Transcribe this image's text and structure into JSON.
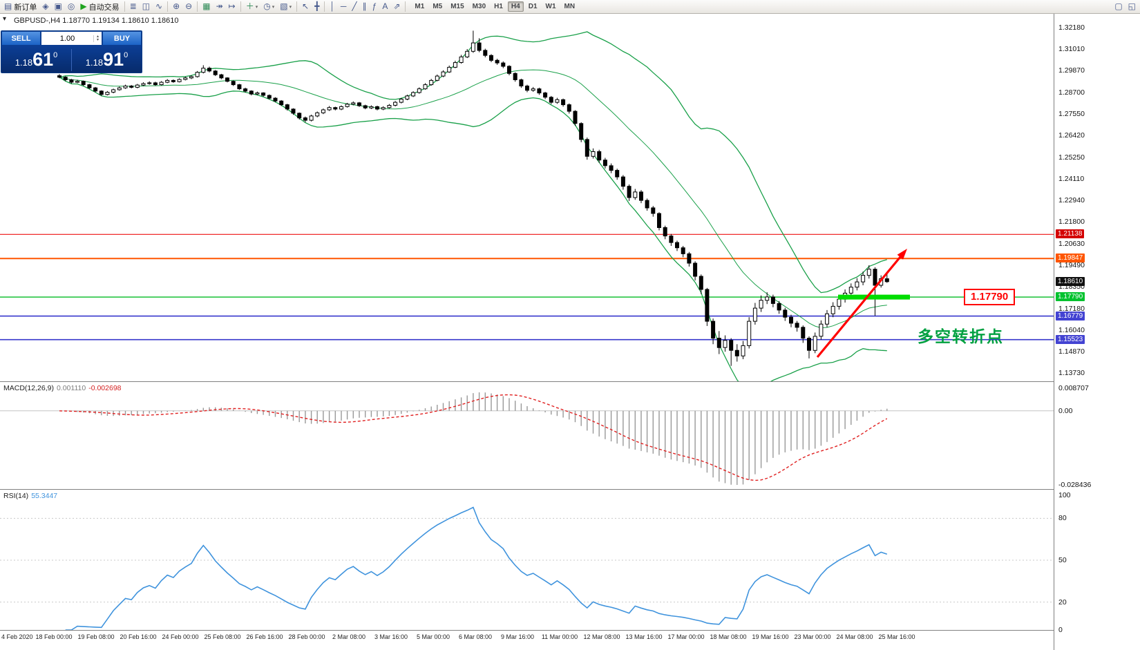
{
  "icons": {
    "dropdown": "▾",
    "spin_up": "▴",
    "spin_down": "▾",
    "panel_toggle": "▾"
  },
  "toolbar": {
    "items": [
      {
        "type": "button",
        "name": "new-order",
        "glyph": "▤",
        "label": "新订单"
      },
      {
        "type": "icon",
        "name": "market-watch",
        "glyph": "◈"
      },
      {
        "type": "icon",
        "name": "data-window",
        "glyph": "▣"
      },
      {
        "type": "icon",
        "name": "navigator",
        "glyph": "◎"
      },
      {
        "type": "button",
        "name": "autotrading",
        "glyph": "▶",
        "label": "自动交易",
        "glyph_color": "#1fa41f"
      },
      {
        "type": "sep"
      },
      {
        "type": "icon",
        "name": "bar-chart",
        "glyph": "≣"
      },
      {
        "type": "icon",
        "name": "candlestick-chart",
        "glyph": "◫"
      },
      {
        "type": "icon",
        "name": "line-chart",
        "glyph": "∿"
      },
      {
        "type": "sep"
      },
      {
        "type": "icon",
        "name": "zoom-in",
        "glyph": "⊕"
      },
      {
        "type": "icon",
        "name": "zoom-out",
        "glyph": "⊖"
      },
      {
        "type": "sep"
      },
      {
        "type": "icon",
        "name": "grid",
        "glyph": "▦",
        "glyph_color": "#2e8b57"
      },
      {
        "type": "icon",
        "name": "auto-scroll",
        "glyph": "↠"
      },
      {
        "type": "icon",
        "name": "chart-shift",
        "glyph": "↦"
      },
      {
        "type": "sep"
      },
      {
        "type": "icon",
        "name": "indicators",
        "glyph": "＋",
        "dropdown": true,
        "glyph_color": "#2e8b57"
      },
      {
        "type": "icon",
        "name": "periods",
        "glyph": "◷",
        "dropdown": true
      },
      {
        "type": "icon",
        "name": "templates",
        "glyph": "▧",
        "dropdown": true
      },
      {
        "type": "sep"
      },
      {
        "type": "icon",
        "name": "cursor",
        "glyph": "↖"
      },
      {
        "type": "icon",
        "name": "crosshair",
        "glyph": "╋"
      },
      {
        "type": "sep"
      },
      {
        "type": "icon",
        "name": "vertical-line",
        "glyph": "│"
      },
      {
        "type": "icon",
        "name": "horizontal-line",
        "glyph": "─"
      },
      {
        "type": "icon",
        "name": "trendline",
        "glyph": "╱"
      },
      {
        "type": "icon",
        "name": "channel",
        "glyph": "∥"
      },
      {
        "type": "icon",
        "name": "fibonacci",
        "glyph": "ƒ"
      },
      {
        "type": "icon",
        "name": "text",
        "glyph": "A"
      },
      {
        "type": "icon",
        "name": "arrows",
        "glyph": "⇗"
      },
      {
        "type": "sep"
      }
    ],
    "timeframes": [
      "M1",
      "M5",
      "M15",
      "M30",
      "H1",
      "H4",
      "D1",
      "W1",
      "MN"
    ],
    "active_timeframe": "H4",
    "right_items": [
      {
        "name": "new-chart-window",
        "glyph": "▢"
      },
      {
        "name": "window-arrange",
        "glyph": "◱"
      }
    ]
  },
  "chart": {
    "header": "GBPUSD-,H4 1.18770 1.19134 1.18610 1.18610",
    "trade_panel": {
      "sell_label": "SELL",
      "buy_label": "BUY",
      "volume": "1.00",
      "sell_price": {
        "prefix": "1.18",
        "big": "61",
        "sup": "0"
      },
      "buy_price": {
        "prefix": "1.18",
        "big": "91",
        "sup": "0"
      }
    },
    "price_axis": {
      "labels": [
        "1.32180",
        "1.31010",
        "1.29870",
        "1.28700",
        "1.27550",
        "1.26420",
        "1.25250",
        "1.24110",
        "1.22940",
        "1.21800",
        "1.20630",
        "1.19490",
        "1.18350",
        "1.17180",
        "1.16040",
        "1.14870",
        "1.13730"
      ],
      "markers": [
        {
          "value": "1.21138",
          "color": "#d40000"
        },
        {
          "value": "1.19847",
          "color": "#ff5500"
        },
        {
          "value": "1.18610",
          "color": "#101010"
        },
        {
          "value": "1.17790",
          "color": "#00c22e"
        },
        {
          "value": "1.16779",
          "color": "#4343d2"
        },
        {
          "value": "1.15523",
          "color": "#4343d2"
        }
      ]
    },
    "hlines": [
      {
        "price": 1.21138,
        "color": "#ee1111",
        "width": 1.2
      },
      {
        "price": 1.19847,
        "color": "#ff5500",
        "width": 2
      },
      {
        "price": 1.1779,
        "color": "#00bb22",
        "width": 1.4
      },
      {
        "price": 1.16779,
        "color": "#3535cc",
        "width": 1.6
      },
      {
        "price": 1.15523,
        "color": "#3535cc",
        "width": 1.6
      }
    ],
    "annotations": {
      "price_label": "1.17790",
      "note": "多空转折点",
      "highlight_price": 1.1779,
      "highlight_color": "#00dd00",
      "arrow_color": "#ff0000"
    }
  },
  "chart_data": {
    "type": "candlestick",
    "symbol": "GBPUSD",
    "timeframe": "H4",
    "ohlc_display": {
      "open": "1.18770",
      "high": "1.19134",
      "low": "1.18610",
      "close": "1.18610"
    },
    "y_range": {
      "max": 1.329,
      "min": 1.133
    },
    "bull_color": "#ffffff",
    "bear_color": "#000000",
    "bollinger": {
      "period": 20,
      "deviation": 2,
      "color": "#19a049"
    },
    "candles": [
      [
        1.296,
        1.2968,
        1.2946,
        1.2952
      ],
      [
        1.2952,
        1.2957,
        1.293,
        1.2938
      ],
      [
        1.2938,
        1.2943,
        1.2918,
        1.2925
      ],
      [
        1.2925,
        1.2938,
        1.292,
        1.293
      ],
      [
        1.293,
        1.2934,
        1.2905,
        1.2912
      ],
      [
        1.2912,
        1.2916,
        1.2889,
        1.2895
      ],
      [
        1.2895,
        1.29,
        1.2871,
        1.2878
      ],
      [
        1.2878,
        1.2882,
        1.2852,
        1.286
      ],
      [
        1.286,
        1.2878,
        1.2855,
        1.2872
      ],
      [
        1.2872,
        1.2891,
        1.2866,
        1.2885
      ],
      [
        1.2885,
        1.2902,
        1.288,
        1.2895
      ],
      [
        1.2895,
        1.2912,
        1.289,
        1.2905
      ],
      [
        1.2905,
        1.291,
        1.2892,
        1.2898
      ],
      [
        1.2898,
        1.2916,
        1.2893,
        1.291
      ],
      [
        1.291,
        1.2925,
        1.2905,
        1.2918
      ],
      [
        1.2918,
        1.293,
        1.2912,
        1.2922
      ],
      [
        1.2922,
        1.2928,
        1.2906,
        1.2912
      ],
      [
        1.2912,
        1.2931,
        1.2908,
        1.2925
      ],
      [
        1.2925,
        1.2942,
        1.292,
        1.2935
      ],
      [
        1.2935,
        1.294,
        1.2922,
        1.2928
      ],
      [
        1.2928,
        1.2946,
        1.2924,
        1.294
      ],
      [
        1.294,
        1.2955,
        1.2935,
        1.2948
      ],
      [
        1.2948,
        1.2962,
        1.2942,
        1.2955
      ],
      [
        1.2955,
        1.2985,
        1.295,
        1.2978
      ],
      [
        1.2978,
        1.3016,
        1.2972,
        1.3
      ],
      [
        1.3,
        1.3008,
        1.2978,
        1.2985
      ],
      [
        1.2985,
        1.299,
        1.2958,
        1.2965
      ],
      [
        1.2965,
        1.297,
        1.2941,
        1.2948
      ],
      [
        1.2948,
        1.2952,
        1.2924,
        1.293
      ],
      [
        1.293,
        1.2935,
        1.2905,
        1.2912
      ],
      [
        1.2912,
        1.2916,
        1.2884,
        1.289
      ],
      [
        1.289,
        1.2896,
        1.287,
        1.2878
      ],
      [
        1.2878,
        1.2882,
        1.2855,
        1.2862
      ],
      [
        1.2862,
        1.2875,
        1.2856,
        1.2868
      ],
      [
        1.2868,
        1.2872,
        1.2848,
        1.2855
      ],
      [
        1.2855,
        1.286,
        1.2833,
        1.284
      ],
      [
        1.284,
        1.2845,
        1.2818,
        1.2825
      ],
      [
        1.2825,
        1.283,
        1.2798,
        1.2805
      ],
      [
        1.2805,
        1.281,
        1.2774,
        1.2782
      ],
      [
        1.2782,
        1.2786,
        1.2751,
        1.276
      ],
      [
        1.276,
        1.2764,
        1.2726,
        1.2735
      ],
      [
        1.2735,
        1.2742,
        1.2712,
        1.2722
      ],
      [
        1.2722,
        1.2752,
        1.2716,
        1.2745
      ],
      [
        1.2745,
        1.2769,
        1.2738,
        1.2762
      ],
      [
        1.2762,
        1.2785,
        1.2755,
        1.2778
      ],
      [
        1.2778,
        1.2798,
        1.2772,
        1.279
      ],
      [
        1.279,
        1.2795,
        1.2775,
        1.2782
      ],
      [
        1.2782,
        1.2802,
        1.2776,
        1.2795
      ],
      [
        1.2795,
        1.2815,
        1.279,
        1.2808
      ],
      [
        1.2808,
        1.2823,
        1.2802,
        1.2815
      ],
      [
        1.2815,
        1.282,
        1.2793,
        1.28
      ],
      [
        1.28,
        1.2805,
        1.2781,
        1.2788
      ],
      [
        1.2788,
        1.2802,
        1.2782,
        1.2795
      ],
      [
        1.2795,
        1.28,
        1.2775,
        1.2782
      ],
      [
        1.2782,
        1.2797,
        1.2776,
        1.279
      ],
      [
        1.279,
        1.2809,
        1.2785,
        1.2802
      ],
      [
        1.2802,
        1.2825,
        1.2796,
        1.2818
      ],
      [
        1.2818,
        1.2842,
        1.2812,
        1.2835
      ],
      [
        1.2835,
        1.2859,
        1.2829,
        1.2852
      ],
      [
        1.2852,
        1.2877,
        1.2846,
        1.287
      ],
      [
        1.287,
        1.2898,
        1.2864,
        1.289
      ],
      [
        1.289,
        1.292,
        1.2885,
        1.2912
      ],
      [
        1.2912,
        1.2943,
        1.2907,
        1.2935
      ],
      [
        1.2935,
        1.2966,
        1.293,
        1.2958
      ],
      [
        1.2958,
        1.2989,
        1.2952,
        1.298
      ],
      [
        1.298,
        1.3014,
        1.2975,
        1.3005
      ],
      [
        1.3005,
        1.304,
        1.3,
        1.303
      ],
      [
        1.303,
        1.3071,
        1.3024,
        1.306
      ],
      [
        1.306,
        1.3102,
        1.3054,
        1.309
      ],
      [
        1.309,
        1.32,
        1.3082,
        1.3135
      ],
      [
        1.3135,
        1.316,
        1.3085,
        1.3095
      ],
      [
        1.3095,
        1.3104,
        1.3058,
        1.3068
      ],
      [
        1.3068,
        1.3075,
        1.3032,
        1.3042
      ],
      [
        1.3042,
        1.305,
        1.3018,
        1.3028
      ],
      [
        1.3028,
        1.3036,
        1.3,
        1.301
      ],
      [
        1.301,
        1.3016,
        1.2962,
        1.2972
      ],
      [
        1.2972,
        1.2978,
        1.2928,
        1.2938
      ],
      [
        1.2938,
        1.2944,
        1.2895,
        1.2905
      ],
      [
        1.2905,
        1.2912,
        1.2872,
        1.2882
      ],
      [
        1.2882,
        1.29,
        1.2874,
        1.289
      ],
      [
        1.289,
        1.2896,
        1.2858,
        1.2868
      ],
      [
        1.2868,
        1.2874,
        1.2835,
        1.2845
      ],
      [
        1.2845,
        1.2852,
        1.2808,
        1.2818
      ],
      [
        1.2818,
        1.2842,
        1.281,
        1.2832
      ],
      [
        1.2832,
        1.2838,
        1.2795,
        1.2805
      ],
      [
        1.2805,
        1.2812,
        1.2758,
        1.277
      ],
      [
        1.277,
        1.2776,
        1.2692,
        1.2705
      ],
      [
        1.2705,
        1.2712,
        1.2605,
        1.262
      ],
      [
        1.262,
        1.263,
        1.2512,
        1.253
      ],
      [
        1.253,
        1.2572,
        1.2518,
        1.2555
      ],
      [
        1.2555,
        1.2565,
        1.2495,
        1.251
      ],
      [
        1.251,
        1.2522,
        1.2465,
        1.248
      ],
      [
        1.248,
        1.2492,
        1.244,
        1.2455
      ],
      [
        1.2455,
        1.2464,
        1.2405,
        1.242
      ],
      [
        1.242,
        1.243,
        1.2352,
        1.237
      ],
      [
        1.237,
        1.238,
        1.2292,
        1.231
      ],
      [
        1.231,
        1.2356,
        1.2298,
        1.234
      ],
      [
        1.234,
        1.235,
        1.228,
        1.2295
      ],
      [
        1.2295,
        1.2305,
        1.224,
        1.2255
      ],
      [
        1.2255,
        1.2265,
        1.2208,
        1.2225
      ],
      [
        1.2225,
        1.2232,
        1.2135,
        1.215
      ],
      [
        1.215,
        1.216,
        1.2088,
        1.2105
      ],
      [
        1.2105,
        1.2116,
        1.2052,
        1.207
      ],
      [
        1.207,
        1.208,
        1.2025,
        1.2042
      ],
      [
        1.2042,
        1.2052,
        1.1992,
        1.201
      ],
      [
        1.201,
        1.202,
        1.1942,
        1.196
      ],
      [
        1.196,
        1.197,
        1.1868,
        1.189
      ],
      [
        1.189,
        1.19,
        1.1795,
        1.182
      ],
      [
        1.182,
        1.1828,
        1.1625,
        1.165
      ],
      [
        1.165,
        1.1665,
        1.1528,
        1.156
      ],
      [
        1.156,
        1.1598,
        1.1475,
        1.151
      ],
      [
        1.151,
        1.1575,
        1.1488,
        1.1548
      ],
      [
        1.1548,
        1.156,
        1.1412,
        1.1495
      ],
      [
        1.1495,
        1.1528,
        1.1435,
        1.1465
      ],
      [
        1.1465,
        1.1545,
        1.1448,
        1.152
      ],
      [
        1.152,
        1.1672,
        1.1505,
        1.165
      ],
      [
        1.165,
        1.1748,
        1.1632,
        1.172
      ],
      [
        1.172,
        1.1788,
        1.17,
        1.1762
      ],
      [
        1.1762,
        1.1805,
        1.1742,
        1.178
      ],
      [
        1.178,
        1.1792,
        1.1725,
        1.1745
      ],
      [
        1.1745,
        1.1758,
        1.169,
        1.171
      ],
      [
        1.171,
        1.1722,
        1.1652,
        1.1672
      ],
      [
        1.1672,
        1.1685,
        1.1618,
        1.164
      ],
      [
        1.164,
        1.1652,
        1.1595,
        1.1618
      ],
      [
        1.1618,
        1.1628,
        1.1535,
        1.156
      ],
      [
        1.156,
        1.157,
        1.1452,
        1.1495
      ],
      [
        1.1495,
        1.159,
        1.148,
        1.157
      ],
      [
        1.157,
        1.1655,
        1.1552,
        1.1635
      ],
      [
        1.1635,
        1.171,
        1.1618,
        1.169
      ],
      [
        1.169,
        1.1752,
        1.1672,
        1.173
      ],
      [
        1.173,
        1.1788,
        1.1712,
        1.1768
      ],
      [
        1.1768,
        1.182,
        1.175,
        1.18
      ],
      [
        1.18,
        1.1852,
        1.1782,
        1.1832
      ],
      [
        1.1832,
        1.188,
        1.1815,
        1.186
      ],
      [
        1.186,
        1.1915,
        1.1842,
        1.1895
      ],
      [
        1.1895,
        1.1949,
        1.1878,
        1.1928
      ],
      [
        1.1928,
        1.1938,
        1.168,
        1.1842
      ],
      [
        1.1842,
        1.1895,
        1.183,
        1.1877
      ],
      [
        1.1877,
        1.19134,
        1.1855,
        1.1861
      ]
    ],
    "x_labels": [
      "4 Feb 2020",
      "18 Feb 00:00",
      "19 Feb 08:00",
      "20 Feb 16:00",
      "24 Feb 00:00",
      "25 Feb 08:00",
      "26 Feb 16:00",
      "28 Feb 00:00",
      "2 Mar 08:00",
      "3 Mar 16:00",
      "5 Mar 00:00",
      "6 Mar 08:00",
      "9 Mar 16:00",
      "11 Mar 00:00",
      "12 Mar 08:00",
      "13 Mar 16:00",
      "17 Mar 00:00",
      "18 Mar 08:00",
      "19 Mar 16:00",
      "23 Mar 00:00",
      "24 Mar 08:00",
      "25 Mar 16:00"
    ]
  },
  "macd_panel": {
    "label": "MACD(12,26,9)",
    "main": "0.001110",
    "signal": "-0.002698",
    "scale_top": "0.008707",
    "scale_zero": "0.00",
    "scale_bottom": "-0.028436",
    "histogram_color": "#989898",
    "signal_color": "#e02020"
  },
  "rsi_panel": {
    "label": "RSI(14)",
    "value": "55.3447",
    "scale": [
      "100",
      "80",
      "50",
      "20",
      "0"
    ],
    "levels": [
      80,
      50,
      20
    ],
    "line_color": "#3f93dd"
  }
}
